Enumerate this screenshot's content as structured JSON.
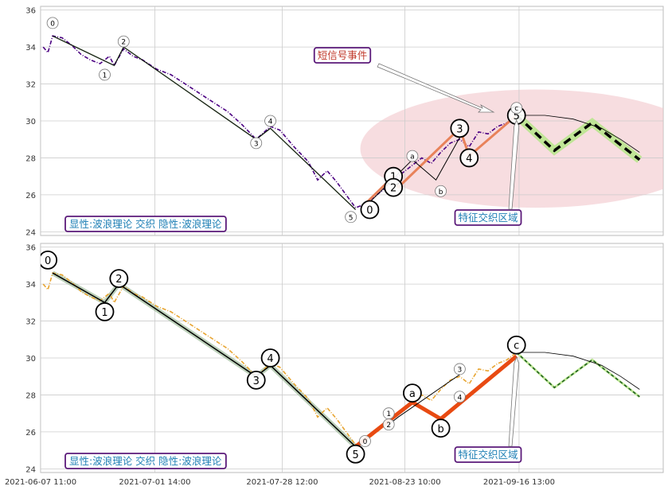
{
  "chart_data": [
    {
      "type": "line",
      "panel": "top",
      "ylim": [
        23.8,
        36.2
      ],
      "yticks": [
        24,
        26,
        28,
        30,
        32,
        34,
        36
      ],
      "xlim": [
        "2021-06-07 11:00",
        "2021-10-17 00:00"
      ],
      "grid": true,
      "price_series": {
        "color": "#4b0082",
        "points": [
          [
            "2021-06-08",
            34.0
          ],
          [
            "2021-06-09",
            33.7
          ],
          [
            "2021-06-10",
            34.6
          ],
          [
            "2021-06-12",
            34.5
          ],
          [
            "2021-06-14",
            34.1
          ],
          [
            "2021-06-16",
            33.6
          ],
          [
            "2021-06-18",
            33.3
          ],
          [
            "2021-06-20",
            33.1
          ],
          [
            "2021-06-22",
            33.5
          ],
          [
            "2021-06-23",
            33.0
          ],
          [
            "2021-06-25",
            33.9
          ],
          [
            "2021-06-27",
            33.5
          ],
          [
            "2021-06-29",
            33.3
          ],
          [
            "2021-07-02",
            32.8
          ],
          [
            "2021-07-05",
            32.5
          ],
          [
            "2021-07-08",
            32.0
          ],
          [
            "2021-07-11",
            31.5
          ],
          [
            "2021-07-14",
            31.0
          ],
          [
            "2021-07-17",
            30.5
          ],
          [
            "2021-07-20",
            29.8
          ],
          [
            "2021-07-23",
            29.0
          ],
          [
            "2021-07-26",
            29.7
          ],
          [
            "2021-07-28",
            29.5
          ],
          [
            "2021-07-31",
            28.6
          ],
          [
            "2021-08-03",
            27.8
          ],
          [
            "2021-08-05",
            26.8
          ],
          [
            "2021-08-07",
            27.3
          ],
          [
            "2021-08-09",
            26.7
          ],
          [
            "2021-08-11",
            26.0
          ],
          [
            "2021-08-13",
            25.3
          ],
          [
            "2021-08-15",
            25.5
          ],
          [
            "2021-08-17",
            25.9
          ],
          [
            "2021-08-19",
            26.3
          ],
          [
            "2021-08-21",
            26.8
          ],
          [
            "2021-08-23",
            27.2
          ],
          [
            "2021-08-25",
            27.6
          ],
          [
            "2021-08-27",
            28.0
          ],
          [
            "2021-08-29",
            27.7
          ],
          [
            "2021-08-31",
            28.3
          ],
          [
            "2021-09-02",
            28.8
          ],
          [
            "2021-09-04",
            29.0
          ],
          [
            "2021-09-06",
            28.6
          ],
          [
            "2021-09-08",
            29.4
          ],
          [
            "2021-09-10",
            29.3
          ],
          [
            "2021-09-12",
            29.7
          ],
          [
            "2021-09-14",
            29.9
          ],
          [
            "2021-09-16",
            30.3
          ]
        ]
      },
      "wave_lines": [
        {
          "color": "#000000",
          "width": 1,
          "points": [
            [
              "2021-06-10",
              34.6
            ],
            [
              "2021-06-23",
              33.0
            ],
            [
              "2021-06-25",
              34.0
            ],
            [
              "2021-07-23",
              29.0
            ],
            [
              "2021-07-26",
              29.6
            ],
            [
              "2021-08-13",
              25.2
            ]
          ]
        },
        {
          "color": "#e8825a",
          "width": 3,
          "points": [
            [
              "2021-08-15",
              25.5
            ],
            [
              "2021-08-21",
              27.0
            ],
            [
              "2021-08-22",
              26.4
            ],
            [
              "2021-09-04",
              29.6
            ],
            [
              "2021-09-06",
              28.1
            ],
            [
              "2021-09-16",
              30.3
            ]
          ]
        },
        {
          "color": "#000000",
          "width": 1,
          "points": [
            [
              "2021-08-16",
              25.6
            ],
            [
              "2021-08-25",
              27.9
            ],
            [
              "2021-08-30",
              26.8
            ],
            [
              "2021-09-04",
              29.1
            ]
          ]
        }
      ],
      "forecast": [
        [
          "2021-09-16",
          30.3
        ],
        [
          "2021-09-24",
          28.4
        ],
        [
          "2021-10-02",
          29.9
        ],
        [
          "2021-10-12",
          27.9
        ]
      ],
      "forecast_arc": [
        [
          "2021-09-16",
          30.3
        ],
        [
          "2021-09-22",
          30.3
        ],
        [
          "2021-09-28",
          30.1
        ],
        [
          "2021-10-04",
          29.6
        ],
        [
          "2021-10-08",
          29.0
        ],
        [
          "2021-10-12",
          28.3
        ]
      ],
      "ellipse": {
        "cx": "2021-09-20",
        "cy": 28.5,
        "rx_days": 37,
        "ry": 3.2,
        "color": "#f2c6cc"
      },
      "wave_labels": [
        {
          "text": "0",
          "x": "2021-06-10",
          "y": 35.3,
          "big": false
        },
        {
          "text": "1",
          "x": "2021-06-21",
          "y": 32.5,
          "big": false
        },
        {
          "text": "2",
          "x": "2021-06-25",
          "y": 34.3,
          "big": false
        },
        {
          "text": "3",
          "x": "2021-07-23",
          "y": 28.8,
          "big": false
        },
        {
          "text": "4",
          "x": "2021-07-26",
          "y": 30.0,
          "big": false
        },
        {
          "text": "5",
          "x": "2021-08-12",
          "y": 24.8,
          "big": false
        },
        {
          "text": "0",
          "x": "2021-08-16",
          "y": 25.2,
          "big": true
        },
        {
          "text": "1",
          "x": "2021-08-21",
          "y": 27.0,
          "big": true
        },
        {
          "text": "2",
          "x": "2021-08-21",
          "y": 26.4,
          "big": true
        },
        {
          "text": "a",
          "x": "2021-08-25",
          "y": 28.1,
          "big": false
        },
        {
          "text": "b",
          "x": "2021-08-31",
          "y": 26.2,
          "big": false
        },
        {
          "text": "3",
          "x": "2021-09-04",
          "y": 29.6,
          "big": true
        },
        {
          "text": "4",
          "x": "2021-09-06",
          "y": 28.0,
          "big": true
        },
        {
          "text": "5",
          "x": "2021-09-16",
          "y": 30.3,
          "big": true
        },
        {
          "text": "c",
          "x": "2021-09-16",
          "y": 30.7,
          "big": false
        }
      ],
      "annotations": {
        "label_box": "显性:波浪理论 交织 隐性:波浪理论",
        "short_signal": "短信号事件",
        "feature_zone": "特征交织区域"
      }
    },
    {
      "type": "line",
      "panel": "bottom",
      "ylim": [
        23.8,
        36.2
      ],
      "yticks": [
        24,
        26,
        28,
        30,
        32,
        34,
        36
      ],
      "xlim": [
        "2021-06-07 11:00",
        "2021-10-17 00:00"
      ],
      "grid": true,
      "price_series": {
        "color": "#e8a531",
        "points": [
          [
            "2021-06-08",
            34.0
          ],
          [
            "2021-06-09",
            33.7
          ],
          [
            "2021-06-10",
            34.6
          ],
          [
            "2021-06-12",
            34.5
          ],
          [
            "2021-06-14",
            34.1
          ],
          [
            "2021-06-16",
            33.6
          ],
          [
            "2021-06-18",
            33.3
          ],
          [
            "2021-06-20",
            33.1
          ],
          [
            "2021-06-22",
            33.5
          ],
          [
            "2021-06-23",
            33.0
          ],
          [
            "2021-06-25",
            33.9
          ],
          [
            "2021-06-27",
            33.5
          ],
          [
            "2021-06-29",
            33.3
          ],
          [
            "2021-07-02",
            32.8
          ],
          [
            "2021-07-05",
            32.5
          ],
          [
            "2021-07-08",
            32.0
          ],
          [
            "2021-07-11",
            31.5
          ],
          [
            "2021-07-14",
            31.0
          ],
          [
            "2021-07-17",
            30.5
          ],
          [
            "2021-07-20",
            29.8
          ],
          [
            "2021-07-23",
            29.0
          ],
          [
            "2021-07-26",
            29.7
          ],
          [
            "2021-07-28",
            29.5
          ],
          [
            "2021-07-31",
            28.6
          ],
          [
            "2021-08-03",
            27.8
          ],
          [
            "2021-08-05",
            26.8
          ],
          [
            "2021-08-07",
            27.3
          ],
          [
            "2021-08-09",
            26.7
          ],
          [
            "2021-08-11",
            26.0
          ],
          [
            "2021-08-13",
            25.3
          ],
          [
            "2021-08-15",
            25.5
          ],
          [
            "2021-08-17",
            25.9
          ],
          [
            "2021-08-19",
            26.3
          ],
          [
            "2021-08-21",
            26.8
          ],
          [
            "2021-08-23",
            27.2
          ],
          [
            "2021-08-25",
            27.6
          ],
          [
            "2021-08-27",
            28.0
          ],
          [
            "2021-08-29",
            27.7
          ],
          [
            "2021-08-31",
            28.3
          ],
          [
            "2021-09-02",
            28.8
          ],
          [
            "2021-09-04",
            29.0
          ],
          [
            "2021-09-06",
            28.6
          ],
          [
            "2021-09-08",
            29.4
          ],
          [
            "2021-09-10",
            29.3
          ],
          [
            "2021-09-12",
            29.7
          ],
          [
            "2021-09-14",
            29.9
          ],
          [
            "2021-09-16",
            30.3
          ]
        ]
      },
      "wave_lines": [
        {
          "color": "#000000",
          "width": 1.5,
          "points": [
            [
              "2021-06-10",
              34.6
            ],
            [
              "2021-06-21",
              33.0
            ],
            [
              "2021-06-24",
              34.0
            ],
            [
              "2021-07-23",
              29.0
            ],
            [
              "2021-07-26",
              29.6
            ],
            [
              "2021-08-13",
              25.2
            ]
          ]
        },
        {
          "color": "#e84a12",
          "width": 5,
          "points": [
            [
              "2021-08-13",
              25.2
            ],
            [
              "2021-08-25",
              27.6
            ],
            [
              "2021-08-31",
              26.7
            ],
            [
              "2021-09-16",
              30.1
            ]
          ]
        },
        {
          "color": "#000000",
          "width": 1,
          "points": [
            [
              "2021-08-20",
              26.4
            ],
            [
              "2021-08-22",
              26.8
            ],
            [
              "2021-09-04",
              29.1
            ]
          ]
        }
      ],
      "forecast": [
        [
          "2021-09-16",
          30.3
        ],
        [
          "2021-09-24",
          28.4
        ],
        [
          "2021-10-02",
          29.9
        ],
        [
          "2021-10-12",
          27.9
        ]
      ],
      "forecast_arc": [
        [
          "2021-09-16",
          30.3
        ],
        [
          "2021-09-22",
          30.3
        ],
        [
          "2021-09-28",
          30.1
        ],
        [
          "2021-10-04",
          29.6
        ],
        [
          "2021-10-08",
          29.0
        ],
        [
          "2021-10-12",
          28.3
        ]
      ],
      "wave_labels": [
        {
          "text": "0",
          "x": "2021-06-09",
          "y": 35.3,
          "big": true
        },
        {
          "text": "1",
          "x": "2021-06-21",
          "y": 32.5,
          "big": true
        },
        {
          "text": "2",
          "x": "2021-06-24",
          "y": 34.3,
          "big": true
        },
        {
          "text": "3",
          "x": "2021-07-23",
          "y": 28.8,
          "big": true
        },
        {
          "text": "4",
          "x": "2021-07-26",
          "y": 30.0,
          "big": true
        },
        {
          "text": "5",
          "x": "2021-08-13",
          "y": 24.8,
          "big": true
        },
        {
          "text": "0",
          "x": "2021-08-15",
          "y": 25.5,
          "big": false
        },
        {
          "text": "1",
          "x": "2021-08-20",
          "y": 27.0,
          "big": false
        },
        {
          "text": "2",
          "x": "2021-08-20",
          "y": 26.4,
          "big": false
        },
        {
          "text": "a",
          "x": "2021-08-25",
          "y": 28.1,
          "big": true
        },
        {
          "text": "b",
          "x": "2021-08-31",
          "y": 26.2,
          "big": true
        },
        {
          "text": "3",
          "x": "2021-09-04",
          "y": 29.4,
          "big": false
        },
        {
          "text": "4",
          "x": "2021-09-04",
          "y": 27.9,
          "big": false
        },
        {
          "text": "c",
          "x": "2021-09-16",
          "y": 30.7,
          "big": true
        }
      ],
      "annotations": {
        "label_box": "显性:波浪理论 交织 隐性:波浪理论",
        "feature_zone": "特征交织区域"
      }
    }
  ],
  "x_axis": {
    "tick_labels": [
      "2021-06-07 11:00",
      "2021-07-01 14:00",
      "2021-07-28 12:00",
      "2021-08-23 10:00",
      "2021-09-16 13:00"
    ]
  },
  "colors": {
    "grid": "#cccccc",
    "annotation_border": "#5b1a7a",
    "annotation_text": "#1e7fb5",
    "short_signal_text": "#c0392b",
    "forecast_glow": "#b9e58e"
  }
}
